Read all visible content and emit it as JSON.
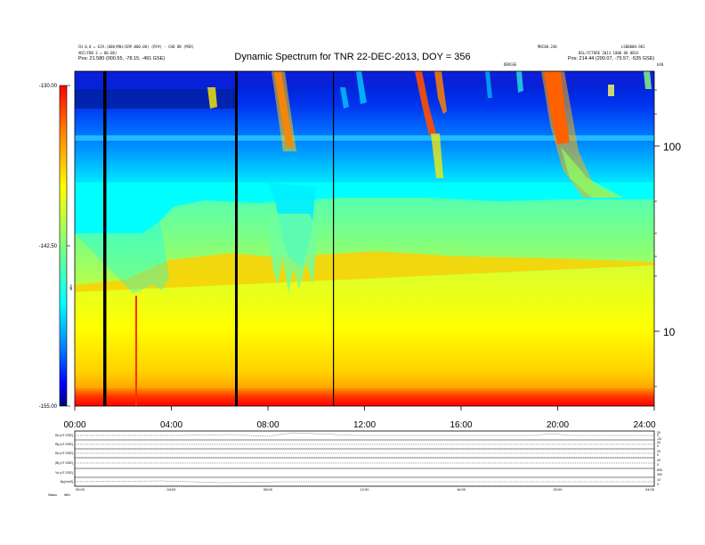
{
  "header": {
    "title": "Dynamic Spectrum for TNR 22-DEC-2013, DOY = 356",
    "left_line1": "CH 0,0 = 619.(000)MHz(ERP:000.00) (RF#) - CH0 ON (MSR)",
    "left_line2": "ARI(FBB 3 = 80.00)",
    "left_pos": "Pos:  21.580 (000.55, -78.15, -491 GSE)",
    "right_top": "MRC00.240",
    "right_top2": "LSB000H.901",
    "right_line2": "BSL/FCTURE 2013 1000 OK HB1X",
    "right_pos": "Pos:  214.44 (200.07, -75.57, -535 GSE)",
    "event_marker": "DBVGSE",
    "corner_marker": "b40"
  },
  "colorbar": {
    "labels": [
      "-130.00",
      "-142.50",
      "-155.00"
    ],
    "side_label": "dBV"
  },
  "right_axis": {
    "labels": [
      "100",
      "10"
    ]
  },
  "x_axis": {
    "labels": [
      "00:00",
      "04:00",
      "08:00",
      "12:00",
      "16:00",
      "20:00",
      "24:00"
    ]
  },
  "lower_panels": {
    "left_labels": [
      "Bx (nT GSE)",
      "By (nT GSE)",
      "Bz (nT GSE)",
      "|B| (nT GSE)",
      "Vx (nT GSE)",
      "Np(/cm3)"
    ],
    "right_labels": [
      "20",
      "0",
      "-20",
      "20",
      "0",
      "20",
      "0",
      "20",
      "0",
      "600",
      "300",
      "10",
      "0"
    ],
    "x_labels": [
      "00:00",
      "04:00",
      "08:00",
      "12:00",
      "16:00",
      "20:00",
      "24:00"
    ],
    "status_label": "Status",
    "status_value": "WIN"
  },
  "chart_data": {
    "type": "heatmap",
    "title": "Dynamic Spectrum for TNR 22-DEC-2013, DOY = 356",
    "xlabel": "",
    "ylabel": "",
    "x_range_hours": [
      0,
      24
    ],
    "y_scale": "log",
    "y_ticks": [
      10,
      100
    ],
    "colorbar_range": [
      -155.0,
      -130.0
    ],
    "colorbar_ticks": [
      -130.0,
      -142.5,
      -155.0
    ],
    "colormap": [
      "#00007f",
      "#0000ff",
      "#0080ff",
      "#00ffff",
      "#80ff80",
      "#ffff00",
      "#ff8000",
      "#ff0000"
    ],
    "data_gaps_hours": [
      1.2,
      6.7,
      10.7
    ],
    "type_iii_bursts_hours": [
      5.7,
      8.2,
      14.3,
      15.0,
      19.6
    ],
    "type_ii_burst_hours": [
      19.4,
      22.0
    ]
  }
}
